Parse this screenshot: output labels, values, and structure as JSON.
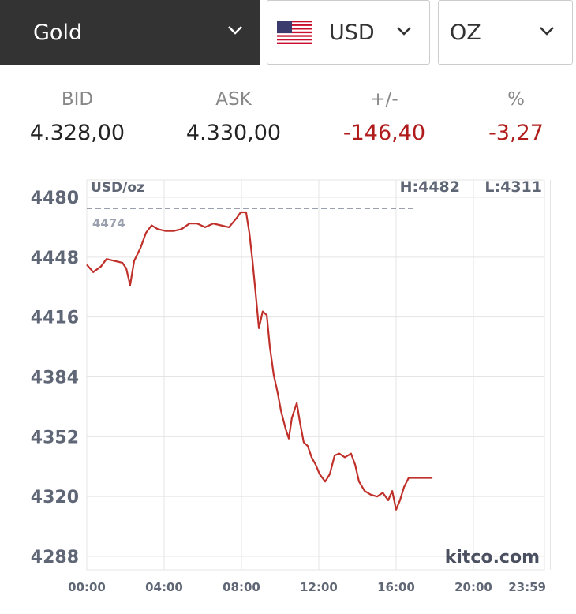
{
  "selectors": {
    "metal": "Gold",
    "currency": "USD",
    "unit": "OZ"
  },
  "quote": {
    "labels": [
      "BID",
      "ASK",
      "+/-",
      "%"
    ],
    "values": [
      "4.328,00",
      "4.330,00",
      "-146,40",
      "-3,27"
    ]
  },
  "chart_data": {
    "type": "line",
    "unit_label": "USD/oz",
    "high_label": "H:4482",
    "low_label": "L:4311",
    "reference_line": 4474,
    "watermark": "kitco.com",
    "x": [
      0,
      0.33,
      0.73,
      1.02,
      1.43,
      1.84,
      2.04,
      2.24,
      2.45,
      2.78,
      3.06,
      3.35,
      3.67,
      4.08,
      4.49,
      4.9,
      5.31,
      5.71,
      6.12,
      6.53,
      6.94,
      7.35,
      7.76,
      7.96,
      8.24,
      8.41,
      8.57,
      8.73,
      8.9,
      9.1,
      9.31,
      9.47,
      9.67,
      9.88,
      10.04,
      10.29,
      10.45,
      10.61,
      10.86,
      11.02,
      11.22,
      11.43,
      11.63,
      11.84,
      12.04,
      12.33,
      12.57,
      12.82,
      13.06,
      13.35,
      13.67,
      13.88,
      14.08,
      14.37,
      14.69,
      15.02,
      15.31,
      15.59,
      15.8,
      16,
      16.2,
      16.41,
      16.65,
      16.94,
      17.35,
      17.88
    ],
    "series": [
      {
        "name": "Gold",
        "color": "#c0302a",
        "values": [
          4444,
          4440,
          4443,
          4447,
          4446,
          4445,
          4442,
          4433,
          4446,
          4453,
          4461,
          4465,
          4463,
          4462,
          4462,
          4463,
          4466,
          4466,
          4464,
          4466,
          4465,
          4464,
          4469,
          4472,
          4472,
          4461,
          4446,
          4429,
          4410,
          4419,
          4417,
          4400,
          4385,
          4375,
          4366,
          4356,
          4351,
          4362,
          4370,
          4360,
          4349,
          4347,
          4341,
          4337,
          4332,
          4328,
          4332,
          4342,
          4343,
          4341,
          4343,
          4337,
          4328,
          4323,
          4321,
          4320,
          4322,
          4318,
          4323,
          4313,
          4318,
          4325,
          4330,
          4330,
          4330,
          4330
        ]
      }
    ],
    "xlim": [
      0,
      24
    ],
    "xticks": [
      {
        "value": 0,
        "label": "00:00"
      },
      {
        "value": 4,
        "label": "04:00"
      },
      {
        "value": 8,
        "label": "08:00"
      },
      {
        "value": 12,
        "label": "12:00"
      },
      {
        "value": 16,
        "label": "16:00"
      },
      {
        "value": 20,
        "label": "20:00"
      },
      {
        "value": 23.98,
        "label": "23:59"
      }
    ],
    "ylim": [
      4288,
      4480
    ],
    "yticks": [
      4288,
      4320,
      4352,
      4384,
      4416,
      4448,
      4480
    ],
    "grid": true
  }
}
